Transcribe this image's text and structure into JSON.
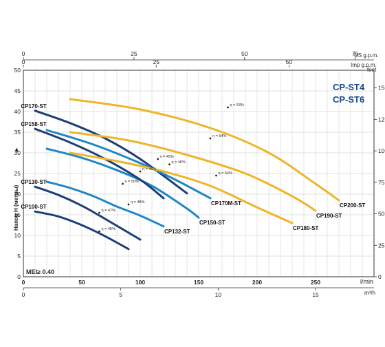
{
  "chart_data": {
    "type": "line",
    "title": [
      "CP-ST4",
      "CP-ST6"
    ],
    "mei_label": "MEI≥ 0.40",
    "ylabel_left": "Напор H (метры)",
    "ylabel_right": "feet",
    "xlabel_bottom_main": "l/min",
    "xlabel_bottom_secondary": "m³/h",
    "xlabel_top_us": "US g.p.m.",
    "xlabel_top_imp": "Imp g.p.m.",
    "xlim_lmin": [
      0,
      300
    ],
    "ylim_m": [
      0,
      50
    ],
    "grid": true,
    "y_ticks": [
      0,
      5,
      10,
      15,
      20,
      25,
      30,
      35,
      40,
      45,
      50
    ],
    "x_ticks_lmin": [
      0,
      50,
      100,
      150,
      200,
      250
    ],
    "x_ticks_m3h": [
      0,
      5,
      10,
      15
    ],
    "x_ticks_us": [
      0,
      25,
      50,
      75
    ],
    "x_ticks_imp": [
      0,
      25,
      50
    ],
    "y_ticks_feet": [
      0,
      25,
      50,
      75,
      100,
      125,
      150
    ],
    "series": [
      {
        "name": "CP100-ST",
        "color": "#1c3f78",
        "x": [
          10,
          30,
          50,
          70,
          90
        ],
        "y": [
          15.8,
          14.6,
          12.5,
          9.8,
          6.7
        ]
      },
      {
        "name": "CP130-ST",
        "color": "#1c3f78",
        "x": [
          10,
          30,
          50,
          70,
          100
        ],
        "y": [
          21.8,
          19.8,
          17.2,
          14.0,
          9.0
        ]
      },
      {
        "name": "CP132-ST",
        "color": "#1e88c7",
        "x": [
          20,
          40,
          60,
          80,
          100,
          120
        ],
        "y": [
          23.0,
          21.5,
          19.5,
          17.0,
          14.8,
          12.2
        ]
      },
      {
        "name": "CP150-ST",
        "color": "#1e88c7",
        "x": [
          20,
          50,
          80,
          110,
          140,
          150
        ],
        "y": [
          31.0,
          28.8,
          25.8,
          22.0,
          16.5,
          14.3
        ]
      },
      {
        "name": "CP158-ST",
        "color": "#1c3f78",
        "x": [
          10,
          40,
          70,
          100,
          120
        ],
        "y": [
          35.8,
          32.5,
          28.5,
          23.5,
          19.0
        ]
      },
      {
        "name": "CP170-ST",
        "color": "#1c3f78",
        "x": [
          10,
          40,
          70,
          100,
          140
        ],
        "y": [
          40.2,
          37.2,
          33.5,
          28.5,
          20.2
        ]
      },
      {
        "name": "CP170M-ST",
        "color": "#1e88c7",
        "x": [
          20,
          60,
          100,
          130,
          160
        ],
        "y": [
          35.5,
          32.0,
          27.5,
          23.5,
          19.0
        ]
      },
      {
        "name": "CP180-ST",
        "color": "#f0b429",
        "x": [
          40,
          80,
          120,
          160,
          200,
          230
        ],
        "y": [
          30.0,
          28.0,
          25.5,
          22.0,
          16.8,
          13.0
        ]
      },
      {
        "name": "CP190-ST",
        "color": "#f0b429",
        "x": [
          40,
          90,
          140,
          190,
          230,
          250
        ],
        "y": [
          35.0,
          33.0,
          29.5,
          25.0,
          19.5,
          16.0
        ]
      },
      {
        "name": "CP200-ST",
        "color": "#f0b429",
        "x": [
          40,
          100,
          160,
          210,
          250,
          270
        ],
        "y": [
          43.0,
          40.5,
          36.0,
          30.0,
          22.5,
          18.5
        ]
      }
    ],
    "efficiency_points": [
      {
        "label": "η = 45%",
        "x": 65,
        "y": 11.0
      },
      {
        "label": "η = 47%",
        "x": 65,
        "y": 15.5
      },
      {
        "label": "η = 48%",
        "x": 90,
        "y": 17.5
      },
      {
        "label": "η = 50%",
        "x": 85,
        "y": 22.5
      },
      {
        "label": "η = 46%",
        "x": 100,
        "y": 25.5
      },
      {
        "label": "η = 45%",
        "x": 115,
        "y": 28.5
      },
      {
        "label": "η = 46%",
        "x": 125,
        "y": 27.2
      },
      {
        "label": "η = 54%",
        "x": 165,
        "y": 24.5
      },
      {
        "label": "η = 54%",
        "x": 160,
        "y": 33.5
      },
      {
        "label": "η = 53%",
        "x": 175,
        "y": 41.0
      }
    ]
  }
}
